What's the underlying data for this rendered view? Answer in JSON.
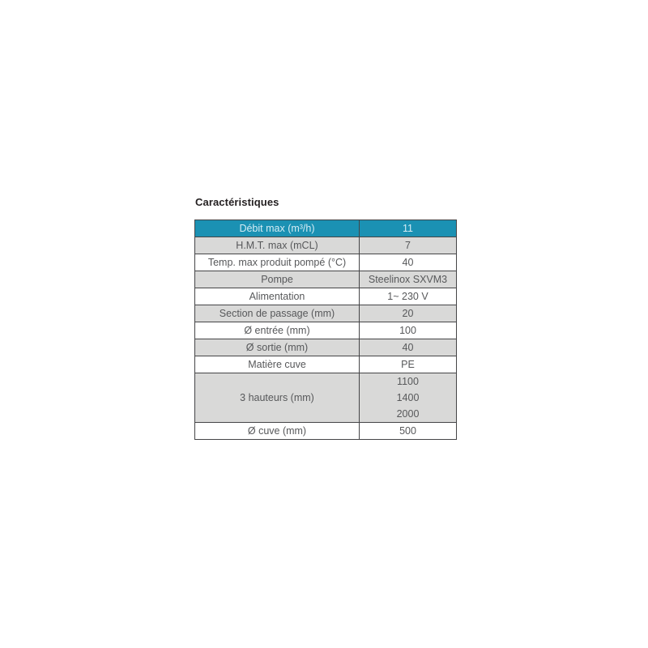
{
  "page": {
    "title": "Caractéristiques"
  },
  "table": {
    "header": {
      "label": "Débit max (m³/h)",
      "value": "11"
    },
    "rows": [
      {
        "label": "H.M.T. max (mCL)",
        "value": "7"
      },
      {
        "label": "Temp. max produit pompé (°C)",
        "value": "40"
      },
      {
        "label": "Pompe",
        "value": "Steelinox SXVM3"
      },
      {
        "label": "Alimentation",
        "value": "1~ 230 V"
      },
      {
        "label": "Section de passage (mm)",
        "value": "20"
      },
      {
        "label": "Ø entrée (mm)",
        "value": "100"
      },
      {
        "label": "Ø sortie (mm)",
        "value": "40"
      },
      {
        "label": "Matière cuve",
        "value": "PE"
      },
      {
        "label": "3 hauteurs (mm)",
        "values": [
          "1100",
          "1400",
          "2000"
        ]
      },
      {
        "label": "Ø cuve (mm)",
        "value": "500"
      }
    ],
    "colors": {
      "header_bg": "#1b91b3",
      "header_text": "#d5ecf4",
      "row_alt_bg": "#d9d9d8",
      "row_bg": "#ffffff",
      "border": "#454547",
      "text": "#57585a",
      "title_text": "#231f20"
    }
  }
}
